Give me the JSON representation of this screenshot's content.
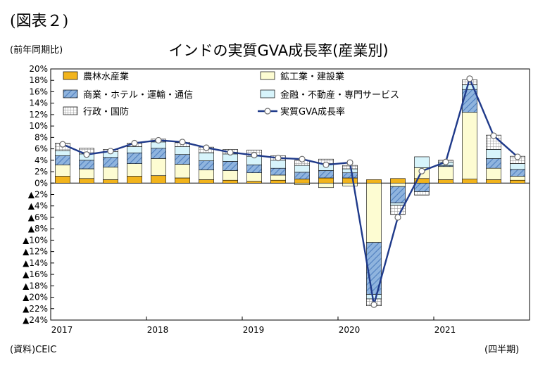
{
  "figure_label": "(図表２)",
  "unit_label": "(前年同期比)",
  "source_label": "(資料)CEIC",
  "x_period_label": "(四半期)",
  "colors": {
    "agriculture": "#f2b41c",
    "construction": "#fdfcd2",
    "trade": "#8fb4de",
    "finance": "#d7f4fb",
    "public": "#e8e8e8",
    "gva_line": "#1f3a8a",
    "gva_marker_fill": "#ffffff"
  },
  "chart_data": {
    "type": "bar",
    "stacked": true,
    "title": "インドの実質GVA成長率(産業別)",
    "ylabel": "",
    "ylim": [
      -24,
      20
    ],
    "y_ticks": [
      20,
      18,
      16,
      14,
      12,
      10,
      8,
      6,
      4,
      2,
      0,
      -2,
      -4,
      -6,
      -8,
      -10,
      -12,
      -14,
      -16,
      -18,
      -20,
      -22,
      -24
    ],
    "y_tick_labels": [
      "20%",
      "18%",
      "16%",
      "14%",
      "12%",
      "10%",
      "8%",
      "6%",
      "4%",
      "2%",
      "0%",
      "▲2%",
      "▲4%",
      "▲6%",
      "▲8%",
      "▲10%",
      "▲12%",
      "▲14%",
      "▲16%",
      "▲18%",
      "▲20%",
      "▲22%",
      "▲24%"
    ],
    "categories": [
      "2017Q1",
      "2017Q2",
      "2017Q3",
      "2017Q4",
      "2018Q1",
      "2018Q2",
      "2018Q3",
      "2018Q4",
      "2019Q1",
      "2019Q2",
      "2019Q3",
      "2019Q4",
      "2020Q1",
      "2020Q2",
      "2020Q3",
      "2020Q4",
      "2021Q1",
      "2021Q2",
      "2021Q3",
      "2021Q4"
    ],
    "year_labels": [
      {
        "label": "2017",
        "index": 0
      },
      {
        "label": "2018",
        "index": 4
      },
      {
        "label": "2019",
        "index": 8
      },
      {
        "label": "2020",
        "index": 12
      },
      {
        "label": "2021",
        "index": 16
      }
    ],
    "legend_position": "top-inside",
    "grid": false,
    "series": [
      {
        "name": "農林水産業",
        "key": "agriculture",
        "kind": "bar",
        "values": [
          1.2,
          0.8,
          0.6,
          1.2,
          1.3,
          0.9,
          0.6,
          0.5,
          0.3,
          0.5,
          0.7,
          0.9,
          0.9,
          0.6,
          0.8,
          0.8,
          0.6,
          0.7,
          0.6,
          0.5
        ]
      },
      {
        "name": "鉱工業・建設業",
        "key": "construction",
        "kind": "bar",
        "values": [
          2.0,
          1.7,
          2.2,
          2.2,
          3.0,
          2.4,
          1.7,
          1.7,
          1.5,
          0.9,
          -0.3,
          -0.8,
          -0.5,
          -10.4,
          -0.6,
          1.9,
          2.3,
          11.7,
          2.0,
          0.7
        ]
      },
      {
        "name": "商業・ホテル・運輸・通信",
        "key": "trade",
        "kind": "bar",
        "values": [
          1.6,
          1.5,
          1.7,
          1.9,
          1.8,
          1.7,
          1.6,
          1.6,
          1.4,
          1.2,
          1.2,
          1.3,
          0.9,
          -9.1,
          -2.9,
          -1.5,
          0.2,
          4.0,
          1.7,
          1.2
        ]
      },
      {
        "name": "金融・不動産・専門サービス",
        "key": "finance",
        "kind": "bar",
        "values": [
          0.9,
          1.1,
          1.0,
          1.1,
          1.1,
          1.4,
          1.4,
          1.3,
          1.5,
          1.4,
          1.2,
          1.2,
          0.7,
          -0.8,
          -0.4,
          1.9,
          0.6,
          0.8,
          1.6,
          1.0
        ]
      },
      {
        "name": "行政・国防",
        "key": "public",
        "kind": "bar",
        "values": [
          1.3,
          1.0,
          0.4,
          0.6,
          0.5,
          0.7,
          1.0,
          0.8,
          1.1,
          0.8,
          0.9,
          0.8,
          0.6,
          -1.2,
          -1.6,
          -0.6,
          0.3,
          0.9,
          2.5,
          1.3
        ]
      },
      {
        "name": "実質GVA成長率",
        "key": "gva",
        "kind": "line",
        "values": [
          6.8,
          5.0,
          5.6,
          7.0,
          7.5,
          7.2,
          6.2,
          5.4,
          4.9,
          4.4,
          4.2,
          3.2,
          3.6,
          -21.3,
          -6.0,
          2.1,
          3.7,
          18.3,
          8.3,
          4.6
        ]
      }
    ]
  }
}
